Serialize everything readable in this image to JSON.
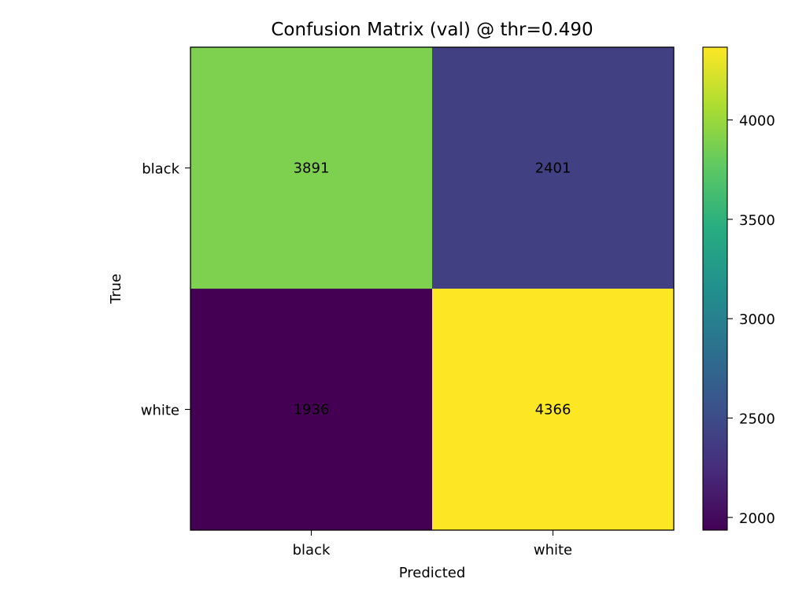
{
  "chart_data": {
    "type": "heatmap",
    "title": "Confusion Matrix (val) @ thr=0.490",
    "xlabel": "Predicted",
    "ylabel": "True",
    "x_categories": [
      "black",
      "white"
    ],
    "y_categories": [
      "black",
      "white"
    ],
    "values": [
      [
        3891,
        2401
      ],
      [
        1936,
        4366
      ]
    ],
    "colormap": "viridis",
    "colorbar": {
      "min": 1936,
      "max": 4366,
      "ticks": [
        2000,
        2500,
        3000,
        3500,
        4000
      ],
      "tick_labels": [
        "2000",
        "2500",
        "3000",
        "3500",
        "4000"
      ]
    },
    "annotation_color": "#000000"
  }
}
